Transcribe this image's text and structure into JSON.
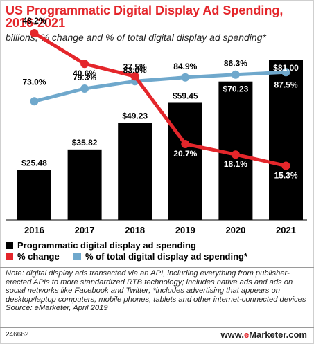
{
  "title": "US Programmatic Digital Display Ad Spending, 2016-2021",
  "subtitle": "billions, % change and % of total digital display ad spending*",
  "chart_data": {
    "type": "bar",
    "categories": [
      "2016",
      "2017",
      "2018",
      "2019",
      "2020",
      "2021"
    ],
    "series": [
      {
        "name": "Programmatic digital display ad spending",
        "kind": "bar",
        "color": "#000000",
        "values": [
          25.48,
          35.82,
          49.23,
          59.45,
          70.23,
          81.0
        ],
        "labels": [
          "$25.48",
          "$35.82",
          "$49.23",
          "$59.45",
          "$70.23",
          "$81.00"
        ]
      },
      {
        "name": "% change",
        "kind": "line",
        "color": "#e4262b",
        "values": [
          48.2,
          40.6,
          37.5,
          20.7,
          18.1,
          15.3
        ],
        "labels": [
          "48.2%",
          "40.6%",
          "37.5%",
          "20.7%",
          "18.1%",
          "15.3%"
        ]
      },
      {
        "name": "% of total digital display ad spending*",
        "kind": "line",
        "color": "#6fa8cc",
        "values": [
          73.0,
          79.3,
          83.0,
          84.9,
          86.3,
          87.5
        ],
        "labels": [
          "73.0%",
          "79.3%",
          "83.0%",
          "84.9%",
          "86.3%",
          "87.5%"
        ]
      }
    ],
    "grid": false,
    "legend_position": "bottom"
  },
  "note": "Note: digital display ads transacted via an API, including everything from publisher-erected APIs to more standardized RTB technology; includes native ads and ads on social networks like Facebook and Twitter; *includes advertising that appears on desktop/laptop computers, mobile phones, tablets and other internet-connected devices",
  "source": "Source: eMarketer, April 2019",
  "chart_id": "246662",
  "brand": {
    "prefix": "www.",
    "highlight": "e",
    "suffix": "Marketer.com"
  }
}
